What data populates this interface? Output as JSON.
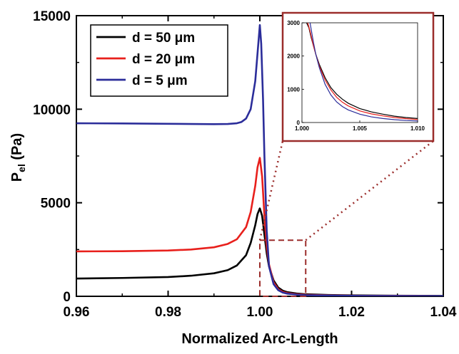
{
  "chart_data": {
    "type": "line",
    "xlabel": "Normalized Arc-Length",
    "ylabel_main": "P",
    "ylabel_sub": "el",
    "ylabel_unit": "(Pa)",
    "xlim": [
      0.96,
      1.04
    ],
    "ylim": [
      0,
      15000
    ],
    "x_ticks": [
      0.96,
      0.98,
      1.0,
      1.02,
      1.04
    ],
    "x_tick_labels": [
      "0.96",
      "0.98",
      "1.00",
      "1.02",
      "1.04"
    ],
    "y_ticks": [
      0,
      5000,
      10000,
      15000
    ],
    "y_tick_labels": [
      "0",
      "5000",
      "10000",
      "15000"
    ],
    "legend_position": "top-left",
    "series": [
      {
        "name": "d = 50 μm",
        "color": "#000000",
        "x": [
          0.96,
          0.97,
          0.98,
          0.985,
          0.99,
          0.993,
          0.995,
          0.997,
          0.998,
          0.999,
          0.9995,
          1.0,
          1.0005,
          1.001,
          1.0015,
          1.002,
          1.003,
          1.004,
          1.005,
          1.006,
          1.008,
          1.01,
          1.015,
          1.02,
          1.03,
          1.04
        ],
        "y": [
          950,
          980,
          1030,
          1100,
          1230,
          1400,
          1650,
          2200,
          2850,
          3800,
          4400,
          4700,
          4300,
          3300,
          2300,
          1600,
          850,
          470,
          300,
          220,
          150,
          110,
          70,
          50,
          30,
          20
        ]
      },
      {
        "name": "d = 20 μm",
        "color": "#e8201c",
        "x": [
          0.96,
          0.97,
          0.98,
          0.985,
          0.99,
          0.993,
          0.995,
          0.997,
          0.998,
          0.999,
          0.9995,
          1.0,
          1.0005,
          1.001,
          1.0015,
          1.002,
          1.003,
          1.004,
          1.005,
          1.006,
          1.008,
          1.01,
          1.015,
          1.02,
          1.03,
          1.04
        ],
        "y": [
          2400,
          2410,
          2450,
          2500,
          2620,
          2800,
          3050,
          3700,
          4500,
          5900,
          6900,
          7400,
          6400,
          4300,
          2700,
          1700,
          750,
          380,
          240,
          170,
          110,
          80,
          50,
          30,
          20,
          10
        ]
      },
      {
        "name": "d =  5  μm",
        "color": "#2b2d9a",
        "x": [
          0.96,
          0.97,
          0.98,
          0.985,
          0.99,
          0.993,
          0.995,
          0.996,
          0.997,
          0.998,
          0.999,
          0.9995,
          1.0,
          1.0003,
          1.0007,
          1.001,
          1.0015,
          1.002,
          1.003,
          1.004,
          1.005,
          1.006,
          1.008,
          1.01,
          1.015,
          1.02,
          1.03,
          1.04
        ],
        "y": [
          9250,
          9240,
          9220,
          9210,
          9200,
          9210,
          9250,
          9320,
          9500,
          10000,
          11500,
          13000,
          14500,
          13500,
          10500,
          7500,
          3500,
          1600,
          650,
          330,
          200,
          140,
          90,
          60,
          40,
          25,
          15,
          10
        ]
      }
    ],
    "inset": {
      "xlim": [
        1.0,
        1.01
      ],
      "ylim": [
        0,
        3000
      ],
      "x_ticks": [
        1.0,
        1.005,
        1.01
      ],
      "x_tick_labels": [
        "1.000",
        "1.005",
        "1.010"
      ],
      "y_ticks": [
        0,
        1000,
        2000,
        3000
      ],
      "y_tick_labels": [
        "0",
        "1000",
        "2000",
        "3000"
      ],
      "series": [
        {
          "name": "d = 50 μm",
          "color": "#000000",
          "x": [
            1.0004,
            1.0006,
            1.0008,
            1.001,
            1.0012,
            1.0015,
            1.002,
            1.0025,
            1.003,
            1.0035,
            1.004,
            1.005,
            1.006,
            1.007,
            1.008,
            1.009,
            1.01
          ],
          "y": [
            3000,
            2850,
            2550,
            2300,
            2050,
            1750,
            1350,
            1050,
            850,
            700,
            580,
            420,
            320,
            250,
            190,
            150,
            120
          ]
        },
        {
          "name": "d = 20 μm",
          "color": "#e8201c",
          "x": [
            1.0005,
            1.0007,
            1.0009,
            1.001,
            1.0012,
            1.0015,
            1.002,
            1.0025,
            1.003,
            1.0035,
            1.004,
            1.005,
            1.006,
            1.007,
            1.008,
            1.009,
            1.01
          ],
          "y": [
            3000,
            2750,
            2450,
            2300,
            2050,
            1700,
            1280,
            980,
            760,
            610,
            500,
            350,
            260,
            200,
            150,
            115,
            90
          ]
        },
        {
          "name": "d =  5  μm",
          "color": "#2b2d9a",
          "x": [
            1.0007,
            1.0009,
            1.001,
            1.0012,
            1.0015,
            1.002,
            1.0025,
            1.003,
            1.0035,
            1.004,
            1.005,
            1.006,
            1.007,
            1.008,
            1.009,
            1.01
          ],
          "y": [
            3000,
            2600,
            2400,
            2050,
            1650,
            1150,
            830,
            620,
            480,
            380,
            250,
            170,
            120,
            85,
            60,
            45
          ]
        }
      ]
    }
  }
}
